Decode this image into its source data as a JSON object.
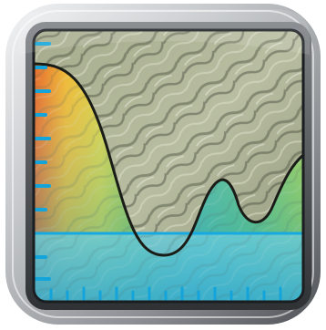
{
  "icon": {
    "name": "terrain-elevation-profile-app-icon",
    "colors": {
      "frame_light": "#e6e8ea",
      "frame_mid": "#a9adb1",
      "frame_dark": "#55595d",
      "screen_border": "#1b1e21",
      "terrain_light": "#c7cbb0",
      "terrain_dark": "#5c6150",
      "elevation_hot": "#e85a1e",
      "elevation_warm": "#f0b423",
      "elevation_yellow": "#e9d83a",
      "elevation_green": "#7fbf4e",
      "elevation_teal": "#45b6a6",
      "water": "#5fc6d8",
      "water_deep": "#2fa3c8",
      "tick_color": "#12a4da",
      "profile_line": "#1a1c17",
      "level_line": "#1aa8e0"
    }
  }
}
